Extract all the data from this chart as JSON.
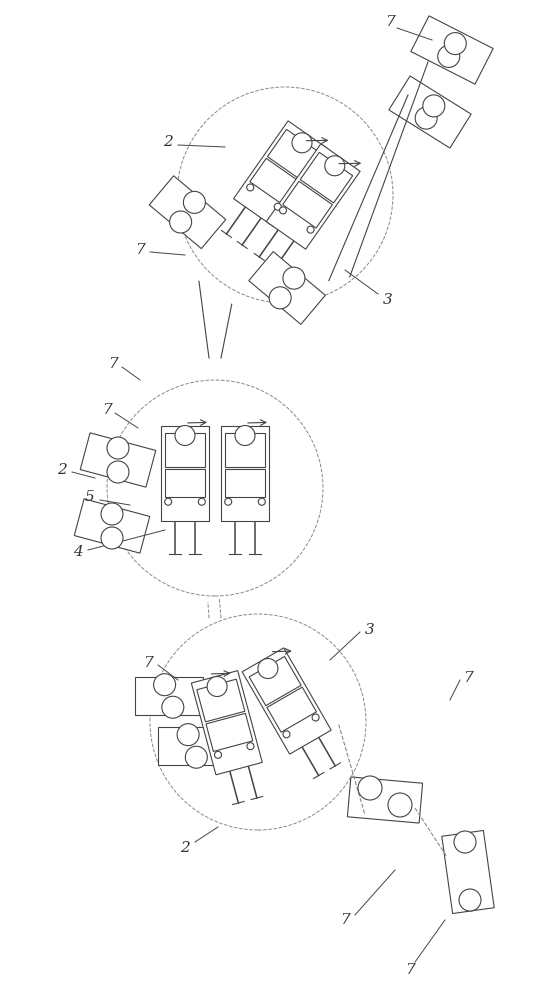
{
  "bg_color": "#ffffff",
  "line_color": "#444444",
  "dashed_color": "#888888",
  "label_color": "#333333",
  "fig_width": 5.37,
  "fig_height": 10.0
}
